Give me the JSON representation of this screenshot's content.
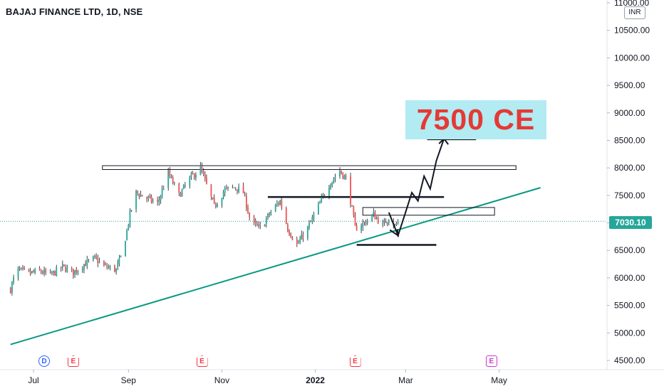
{
  "header": {
    "symbol_title": "BAJAJ FINANCE LTD, 1D, NSE",
    "currency": "INR"
  },
  "price_label": {
    "value": "7030.10",
    "color": "#26a69a"
  },
  "annotation": {
    "target_text": "7500 CE",
    "target_bg": "#b2ebf2",
    "target_color": "#e53935"
  },
  "events": [
    {
      "letter": "D",
      "kind": "dividend",
      "date": "2021-07-08"
    },
    {
      "letter": "E",
      "kind": "earnings",
      "date": "2021-07-27"
    },
    {
      "letter": "E",
      "kind": "earnings",
      "date": "2021-10-19"
    },
    {
      "letter": "E",
      "kind": "earnings",
      "date": "2022-01-27"
    },
    {
      "letter": "E",
      "kind": "earnings-upcoming",
      "date": "2022-04-26"
    }
  ],
  "chart_data": {
    "type": "candlestick",
    "title": "BAJAJ FINANCE LTD, 1D, NSE",
    "xlabel": "",
    "ylabel": "",
    "x_range": [
      "2021-06-16",
      "2022-05-30"
    ],
    "ylim": [
      4300,
      11100
    ],
    "y_ticks": [
      "11000.00",
      "10500.00",
      "10000.00",
      "9500.00",
      "9000.00",
      "8500.00",
      "8000.00",
      "7500.00",
      "7000.00",
      "6500.00",
      "6000.00",
      "5500.00",
      "5000.00",
      "4500.00"
    ],
    "x_ticks": [
      {
        "label": "Jul",
        "date": "2021-07-01"
      },
      {
        "label": "Sep",
        "date": "2021-09-01"
      },
      {
        "label": "Nov",
        "date": "2021-11-01"
      },
      {
        "label": "2022",
        "date": "2022-01-01",
        "bold": true
      },
      {
        "label": "Mar",
        "date": "2022-03-01"
      },
      {
        "label": "May",
        "date": "2022-05-01"
      }
    ],
    "last_price": 7030.1,
    "up_color": "#26a69a",
    "down_color": "#ef5350",
    "price_path": [
      [
        "2021-06-16",
        5800
      ],
      [
        "2021-06-20",
        6150
      ],
      [
        "2021-06-28",
        6080
      ],
      [
        "2021-07-05",
        6120
      ],
      [
        "2021-07-12",
        6050
      ],
      [
        "2021-07-20",
        6200
      ],
      [
        "2021-07-27",
        6100
      ],
      [
        "2021-08-03",
        6250
      ],
      [
        "2021-08-10",
        6350
      ],
      [
        "2021-08-17",
        6200
      ],
      [
        "2021-08-24",
        6150
      ],
      [
        "2021-08-28",
        6450
      ],
      [
        "2021-09-02",
        7150
      ],
      [
        "2021-09-06",
        7550
      ],
      [
        "2021-09-13",
        7450
      ],
      [
        "2021-09-20",
        7350
      ],
      [
        "2021-09-27",
        7900
      ],
      [
        "2021-10-04",
        7500
      ],
      [
        "2021-10-11",
        7800
      ],
      [
        "2021-10-18",
        8000
      ],
      [
        "2021-10-23",
        7600
      ],
      [
        "2021-10-27",
        7300
      ],
      [
        "2021-11-03",
        7600
      ],
      [
        "2021-11-10",
        7650
      ],
      [
        "2021-11-15",
        7550
      ],
      [
        "2021-11-20",
        7000
      ],
      [
        "2021-11-26",
        6900
      ],
      [
        "2021-12-03",
        7200
      ],
      [
        "2021-12-09",
        7400
      ],
      [
        "2021-12-14",
        6900
      ],
      [
        "2021-12-20",
        6600
      ],
      [
        "2021-12-27",
        6900
      ],
      [
        "2022-01-03",
        7300
      ],
      [
        "2022-01-10",
        7700
      ],
      [
        "2022-01-17",
        7950
      ],
      [
        "2022-01-21",
        7800
      ],
      [
        "2022-01-24",
        7400
      ],
      [
        "2022-01-27",
        6900
      ],
      [
        "2022-02-02",
        7000
      ],
      [
        "2022-02-08",
        7150
      ],
      [
        "2022-02-14",
        6950
      ],
      [
        "2022-02-18",
        7100
      ],
      [
        "2022-02-22",
        6950
      ],
      [
        "2022-02-25",
        7030.1
      ]
    ],
    "drawings": {
      "resistance_zone": {
        "from": "2021-08-15",
        "to": "2022-05-12",
        "low": 7970,
        "high": 8040
      },
      "support_zone": {
        "from": "2022-02-01",
        "to": "2022-04-28",
        "low": 7140,
        "high": 7280
      },
      "horizontal_lines": [
        {
          "from": "2021-12-01",
          "to": "2022-03-26",
          "price": 7470
        },
        {
          "from": "2022-01-28",
          "to": "2022-03-21",
          "price": 6600
        },
        {
          "from": "2022-03-15",
          "to": "2022-04-16",
          "price": 8520
        }
      ],
      "trendline": {
        "from": [
          "2021-06-16",
          4790
        ],
        "to": [
          "2022-05-28",
          7640
        ]
      },
      "projection_path": [
        [
          "2022-02-18",
          7190
        ],
        [
          "2022-02-24",
          6770
        ],
        [
          "2022-03-01",
          7200
        ],
        [
          "2022-03-05",
          7550
        ],
        [
          "2022-03-09",
          7400
        ],
        [
          "2022-03-13",
          7850
        ],
        [
          "2022-03-17",
          7620
        ],
        [
          "2022-03-21",
          8130
        ],
        [
          "2022-03-26",
          8530
        ]
      ]
    }
  }
}
